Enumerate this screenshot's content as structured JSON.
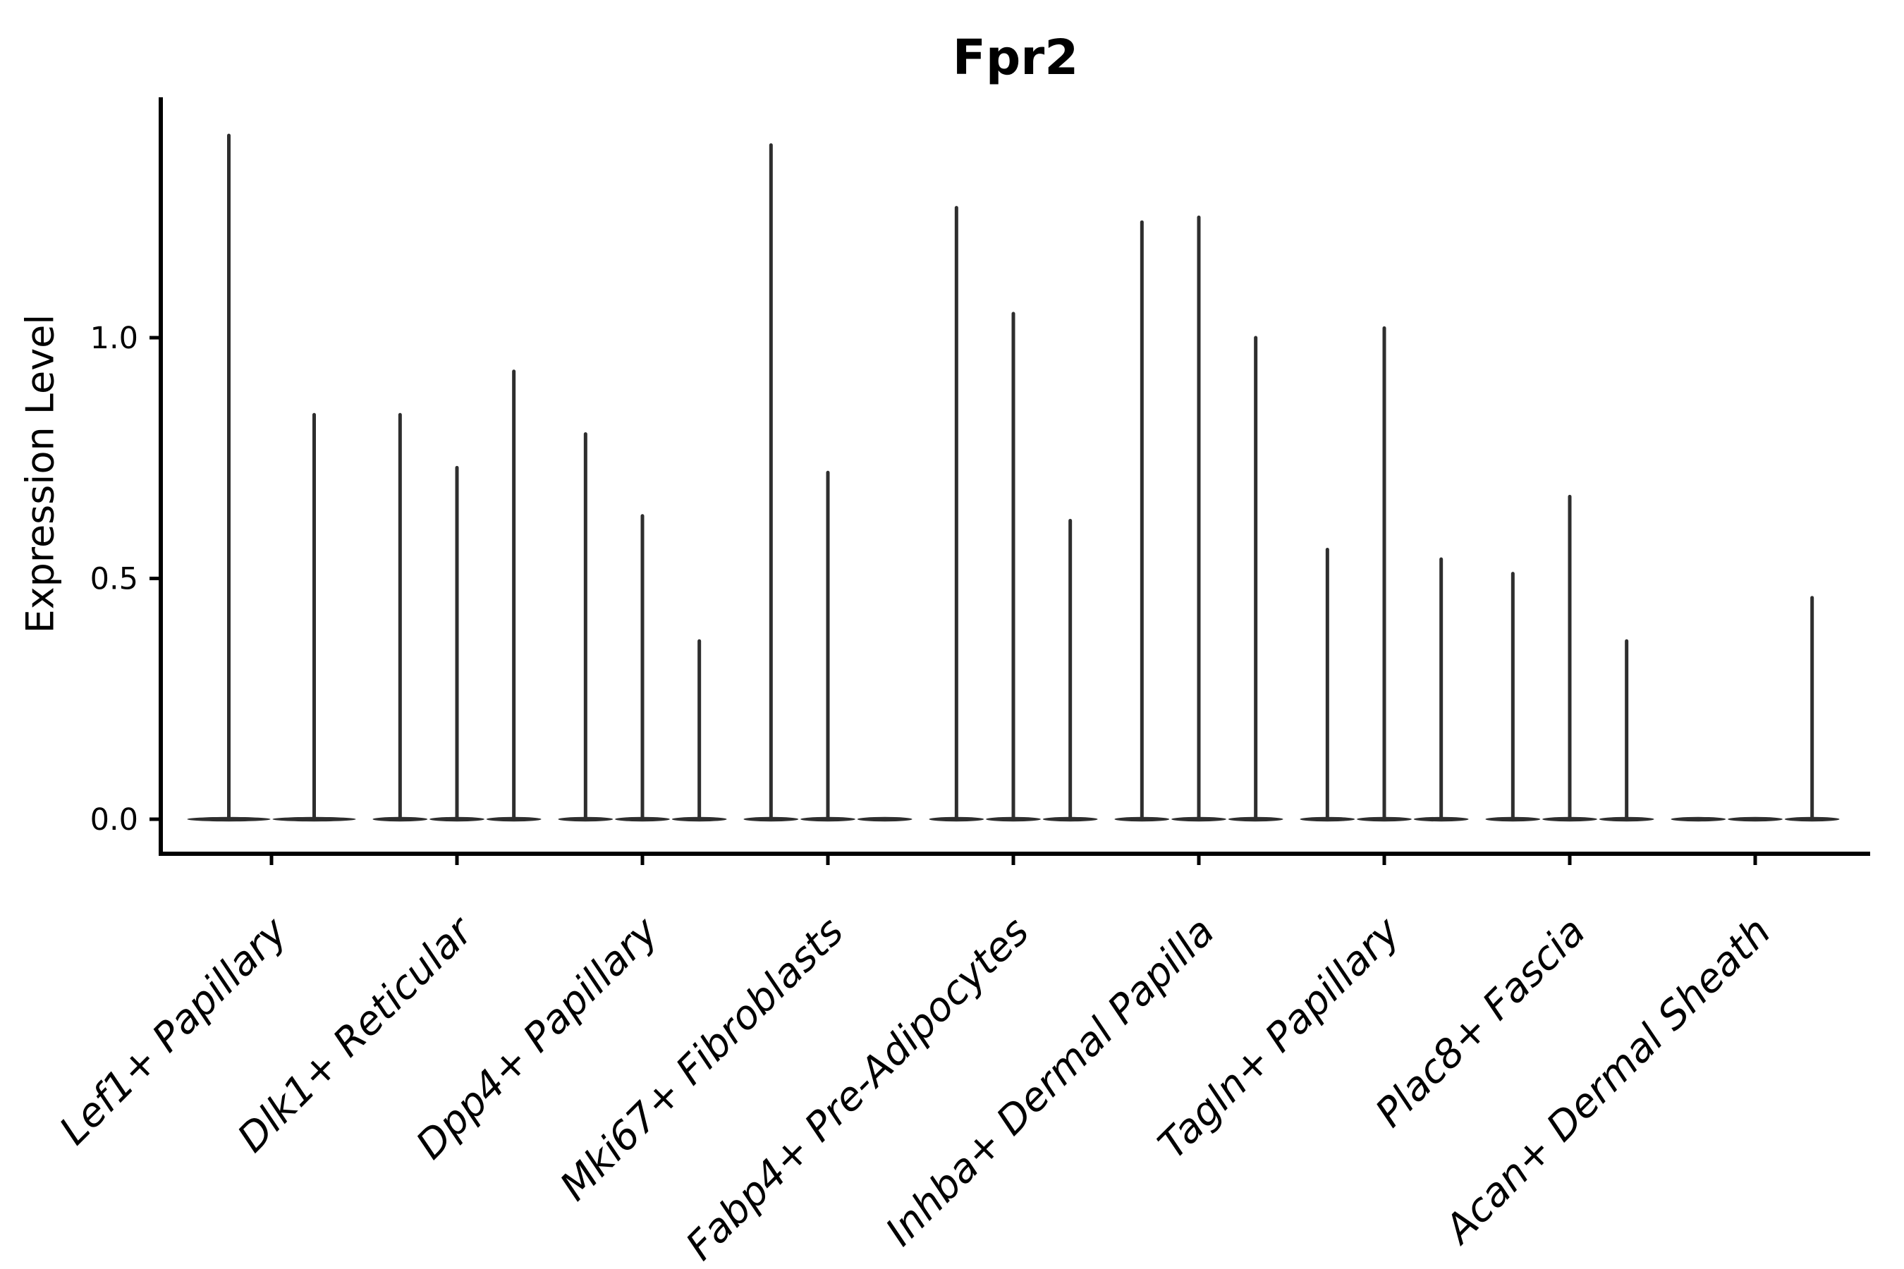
{
  "chart_data": {
    "type": "violin",
    "title": "Fpr2",
    "ylabel": "Expression Level",
    "xlabel": "",
    "ylim": [
      0,
      1.5
    ],
    "grid": false,
    "legend": "none",
    "yticks": [
      {
        "label": "0.0",
        "value": 0.0
      },
      {
        "label": "0.5",
        "value": 0.5
      },
      {
        "label": "1.0",
        "value": 1.0
      }
    ],
    "categories": [
      "Lef1+ Papillary",
      "Dlk1+ Reticular",
      "Dpp4+ Papillary",
      "Mki67+ Fibroblasts",
      "Fabp4+ Pre-Adipocytes",
      "Inhba+ Dermal Papilla",
      "Tagln+ Papillary",
      "Plac8+ Fascia",
      "Acan+ Dermal Sheath"
    ],
    "groups": [
      {
        "category": "Lef1+ Papillary",
        "violin_peaks": [
          1.42,
          0.84
        ]
      },
      {
        "category": "Dlk1+ Reticular",
        "violin_peaks": [
          0.84,
          0.73,
          0.93
        ]
      },
      {
        "category": "Dpp4+ Papillary",
        "violin_peaks": [
          0.8,
          0.63,
          0.37
        ]
      },
      {
        "category": "Mki67+ Fibroblasts",
        "violin_peaks": [
          1.4,
          0.72,
          0.0
        ]
      },
      {
        "category": "Fabp4+ Pre-Adipocytes",
        "violin_peaks": [
          1.27,
          1.05,
          0.62
        ]
      },
      {
        "category": "Inhba+ Dermal Papilla",
        "violin_peaks": [
          1.24,
          1.25,
          1.0
        ]
      },
      {
        "category": "Tagln+ Papillary",
        "violin_peaks": [
          0.56,
          1.02,
          0.54
        ]
      },
      {
        "category": "Plac8+ Fascia",
        "violin_peaks": [
          0.51,
          0.67,
          0.37
        ]
      },
      {
        "category": "Acan+ Dermal Sheath",
        "violin_peaks": [
          0.0,
          0.0,
          0.46
        ]
      }
    ],
    "colors": {
      "violin": "#2e2e2e",
      "axis": "#000000",
      "text": "#000000",
      "background": "#ffffff"
    }
  }
}
